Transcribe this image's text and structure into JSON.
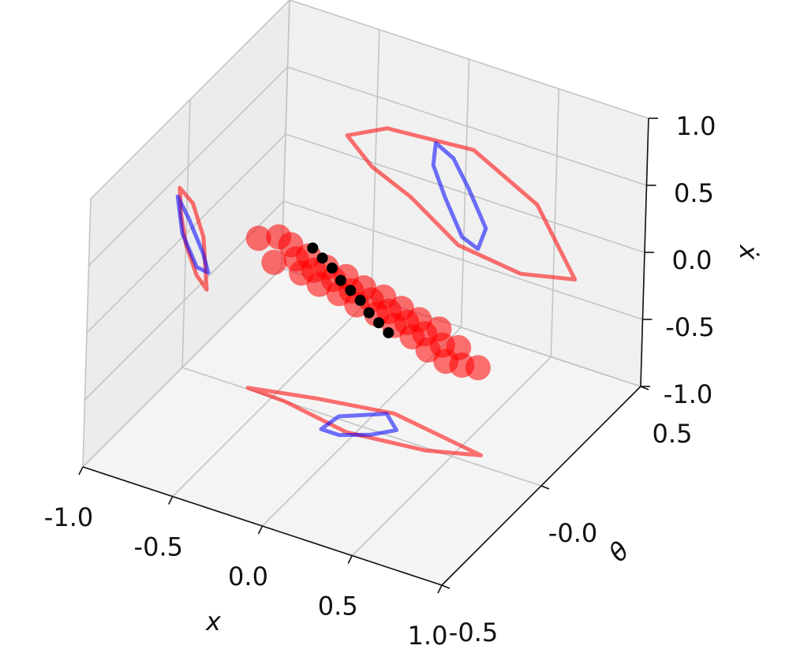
{
  "chart_data": {
    "type": "scatter3d",
    "xlabel": "x",
    "ylabel": "θ",
    "zlabel": "ẋ",
    "xlim": [
      -1,
      1
    ],
    "ylim": [
      -0.5,
      0.5
    ],
    "zlim": [
      -1,
      1
    ],
    "xticks": [
      {
        "value": -1,
        "label": "-1.0"
      },
      -0.5,
      {
        "value": 0,
        "label": "0.0"
      },
      0.5,
      {
        "value": 1,
        "label": "1.0"
      }
    ],
    "yticks": [
      -0.5,
      {
        "value": 0,
        "label": "-0.0"
      },
      0.5
    ],
    "zticks": [
      {
        "value": -1,
        "label": "-1.0"
      },
      -0.5,
      {
        "value": 0,
        "label": "0.0"
      },
      0.5,
      {
        "value": 1,
        "label": "1.0"
      }
    ],
    "grid": true,
    "series": [
      {
        "color": "#ff0000",
        "x": [
          -0.6,
          -0.5,
          -0.5,
          -0.4,
          -0.4,
          -0.4,
          -0.3,
          -0.3,
          -0.3,
          -0.2,
          -0.2,
          -0.2,
          -0.1,
          -0.1,
          -0.1,
          0,
          0,
          0,
          0.1,
          0.1,
          0.1,
          0.2,
          0.2,
          0.2,
          0.3,
          0.3,
          0.3,
          0.4,
          0.4,
          0.4,
          0.5,
          0.5,
          0.6
        ],
        "y": [
          0,
          0.01,
          -0.01,
          -0.02,
          0.01,
          0.04,
          -0.02,
          0.01,
          0.04,
          -0.02,
          0.02,
          0.05,
          -0.01,
          0.02,
          0.05,
          -0.01,
          0.03,
          0.06,
          0,
          0.03,
          0.06,
          0,
          0.03,
          0.06,
          0,
          0.03,
          0.05,
          0.01,
          0.03,
          0.05,
          0.02,
          0.04,
          0.03
        ],
        "z": [
          0.14,
          0.18,
          0.02,
          0.21,
          0.06,
          -0.09,
          0.17,
          0.02,
          -0.13,
          0.13,
          -0.02,
          -0.17,
          0.09,
          -0.06,
          -0.21,
          0.05,
          -0.1,
          -0.25,
          0.01,
          -0.14,
          -0.29,
          -0.03,
          -0.18,
          -0.33,
          -0.07,
          -0.22,
          -0.37,
          -0.11,
          -0.26,
          -0.41,
          -0.22,
          -0.38,
          -0.34
        ]
      },
      {
        "color": "#000000",
        "x": [
          -0.3,
          -0.25,
          -0.2,
          -0.15,
          -0.1,
          -0.05,
          0,
          0.05,
          0.1
        ],
        "y": [
          0,
          0.005,
          0.01,
          0.01,
          0.015,
          0.02,
          0.02,
          0.025,
          0.03
        ],
        "z": [
          0.2,
          0.14,
          0.08,
          0.01,
          -0.05,
          -0.11,
          -0.18,
          -0.24,
          -0.3
        ]
      }
    ],
    "projections": [
      {
        "plane": "xy",
        "color": "#ff0000",
        "x": [
          -0.64,
          -0.31,
          0.08,
          0.62,
          0.37,
          -0.04,
          -0.43
        ],
        "y": [
          0.005,
          0.05,
          0.09,
          0.04,
          -0.01,
          -0.04,
          0
        ]
      },
      {
        "plane": "xy",
        "color": "#0000ff",
        "x": [
          -0.16,
          -0.14,
          0.05,
          0.16,
          0.07,
          -0.06
        ],
        "y": [
          -0.06,
          0.01,
          0.08,
          0.03,
          -0.02,
          -0.06
        ]
      },
      {
        "plane": "yz",
        "color": "#ff0000",
        "y": [
          -0.04,
          0.03,
          0.09,
          0.115,
          0.06,
          0,
          -0.03
        ],
        "z": [
          0.4,
          0.18,
          -0.16,
          -0.59,
          -0.4,
          -0.08,
          0.19
        ]
      },
      {
        "plane": "yz",
        "color": "#0000ff",
        "y": [
          -0.05,
          0.01,
          0.09,
          0.12,
          0.06,
          -0.02
        ],
        "z": [
          0.35,
          0.1,
          -0.28,
          -0.47,
          -0.34,
          0.03
        ]
      },
      {
        "plane": "xz",
        "color": "#ff0000",
        "x": [
          -0.66,
          -0.44,
          0.04,
          0.4,
          0.62,
          0.32,
          -0.03,
          -0.3,
          -0.52
        ],
        "z": [
          0.14,
          0.29,
          0.34,
          0.09,
          -0.37,
          -0.46,
          -0.4,
          -0.16,
          -0.03
        ]
      },
      {
        "plane": "xz",
        "color": "#0000ff",
        "x": [
          -0.17,
          -0.07,
          0.02,
          0.12,
          0.08,
          -0.01,
          -0.11,
          -0.18
        ],
        "z": [
          0.3,
          0.23,
          0.04,
          -0.21,
          -0.38,
          -0.33,
          -0.08,
          0.13
        ]
      }
    ]
  }
}
